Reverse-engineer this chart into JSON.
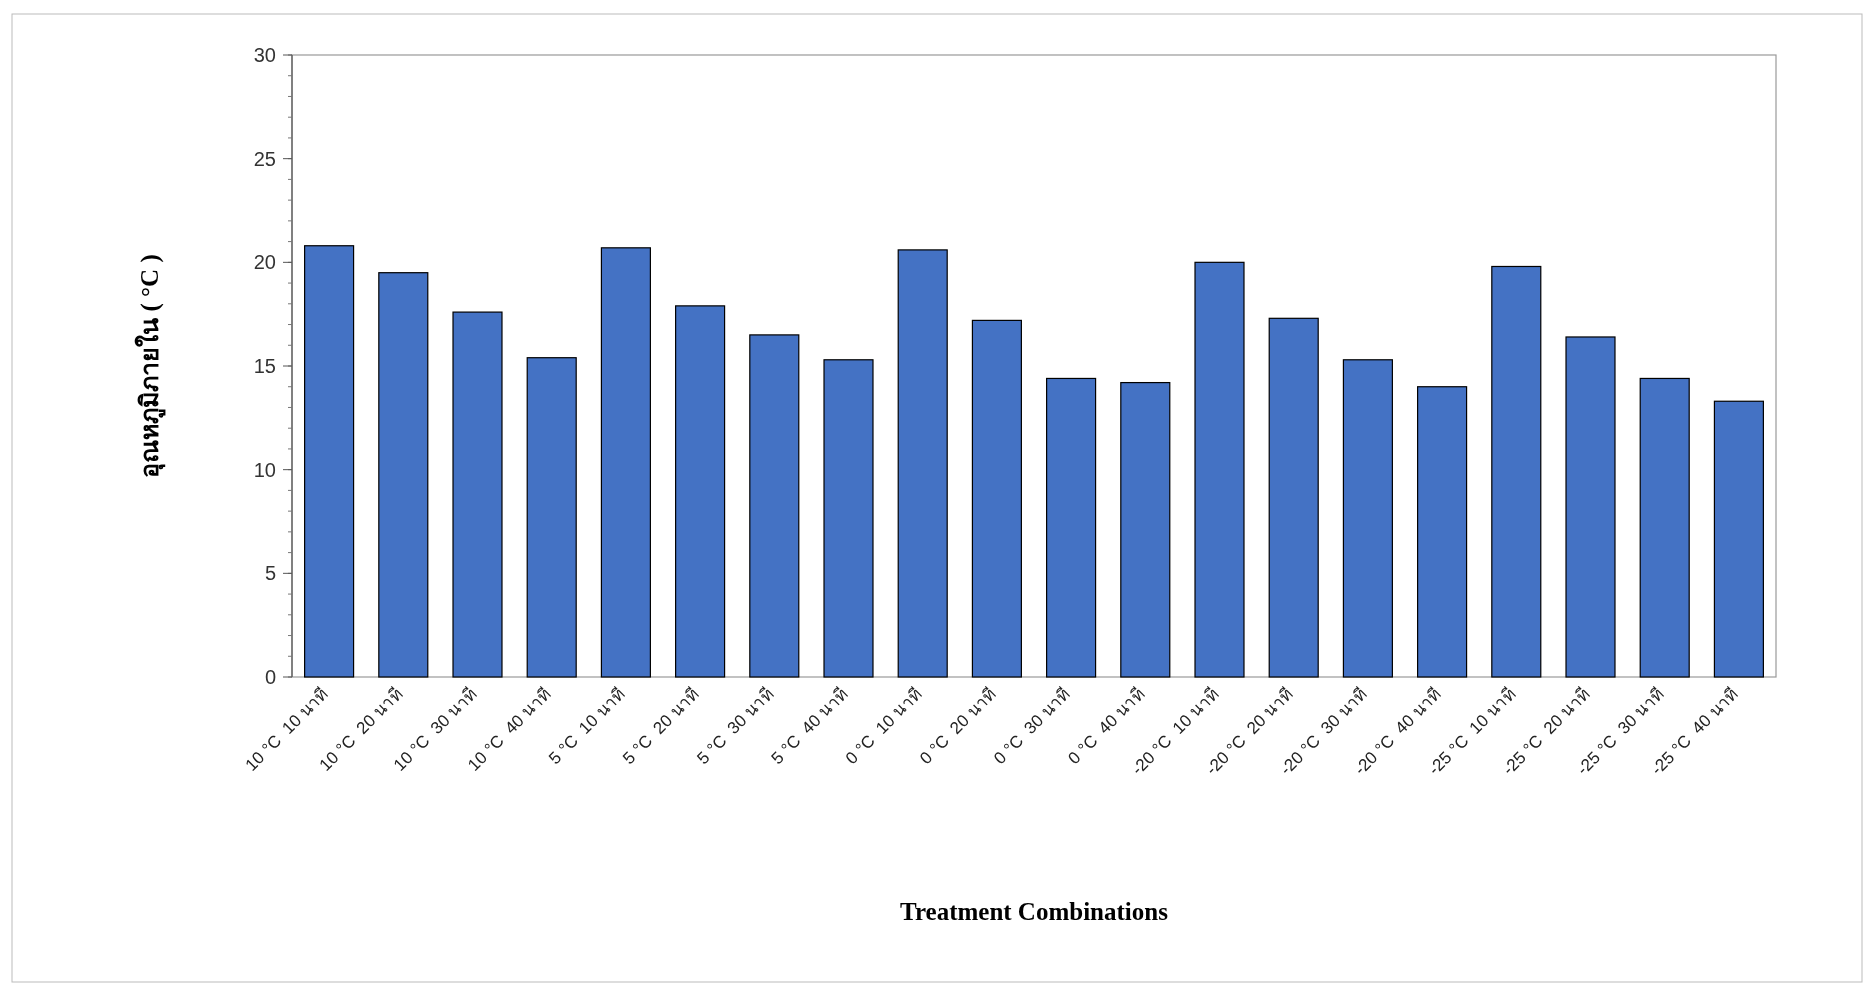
{
  "chart_data": {
    "type": "bar",
    "xlabel": "Treatment Combinations",
    "ylabel": "อุณหภูมิภายใน ( °C )",
    "categories": [
      "10 °C  10 นาที",
      "10 °C  20 นาที",
      "10 °C  30 นาที",
      "10 °C  40 นาที",
      "5 °C  10 นาที",
      "5 °C  20 นาที",
      "5 °C  30 นาที",
      "5 °C  40 นาที",
      "0 °C  10 นาที",
      "0 °C  20 นาที",
      "0 °C  30 นาที",
      "0 °C  40 นาที",
      "-20 °C  10 นาที",
      "-20 °C  20 นาที",
      "-20 °C  30 นาที",
      "-20 °C  40 นาที",
      "-25 °C  10 นาที",
      "-25 °C  20 นาที",
      "-25 °C  30 นาที",
      "-25 °C  40 นาที"
    ],
    "values": [
      20.8,
      19.5,
      17.6,
      15.4,
      20.7,
      17.9,
      16.5,
      15.3,
      20.6,
      17.2,
      14.4,
      14.2,
      20.0,
      17.3,
      15.3,
      14.0,
      19.8,
      16.4,
      14.4,
      13.3
    ],
    "color": "#4472c4",
    "ylim": [
      0,
      30
    ],
    "yticks": [
      0,
      5,
      10,
      15,
      20,
      25,
      30
    ],
    "grid": false
  }
}
